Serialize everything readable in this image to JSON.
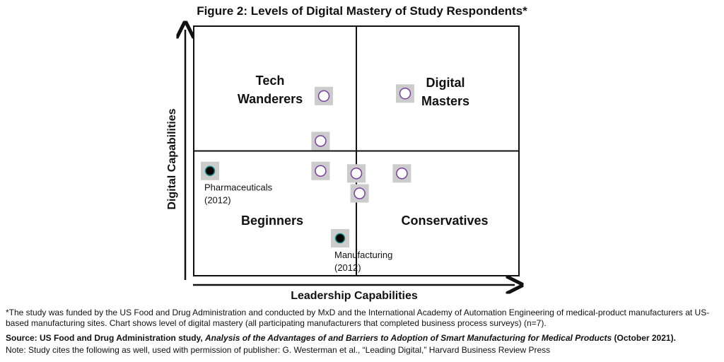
{
  "chart_data": {
    "type": "scatter",
    "title": "Figure 2: Levels of Digital Mastery of Study Respondents*",
    "xlabel": "Leadership Capabilities",
    "ylabel": "Digital Capabilities",
    "xlim": [
      0,
      10
    ],
    "ylim": [
      0,
      10
    ],
    "quadrant_divider": {
      "x": 5,
      "y": 5
    },
    "quadrants": [
      {
        "label_lines": [
          "Tech",
          "Wanderers"
        ],
        "position": "top-left"
      },
      {
        "label_lines": [
          "Digital",
          "Masters"
        ],
        "position": "top-right"
      },
      {
        "label_lines": [
          "Beginners"
        ],
        "position": "bottom-left"
      },
      {
        "label_lines": [
          "Conservatives"
        ],
        "position": "bottom-right"
      }
    ],
    "series": [
      {
        "marker": "open-circle",
        "marker_color": "#7a3fa0",
        "points": [
          {
            "x": 4.0,
            "y": 7.2
          },
          {
            "x": 6.5,
            "y": 7.3
          },
          {
            "x": 3.9,
            "y": 4.2
          },
          {
            "x": 3.9,
            "y": 5.4
          },
          {
            "x": 5.0,
            "y": 4.1
          },
          {
            "x": 6.4,
            "y": 4.1
          },
          {
            "x": 5.1,
            "y": 3.3
          }
        ]
      },
      {
        "marker": "filled-circle",
        "marker_color": "#000000",
        "points": [
          {
            "x": 0.5,
            "y": 4.2,
            "label_lines": [
              "Pharmaceuticals",
              "(2012)"
            ]
          },
          {
            "x": 4.5,
            "y": 1.5,
            "label_lines": [
              "Manufacturing",
              "(2012)"
            ]
          }
        ]
      }
    ],
    "grid": false,
    "legend": "none"
  },
  "notes": {
    "footnote": "*The study was funded by the US Food and Drug Administration and conducted by MxD and the International Academy of Automation Engineering of medical-product manufacturers at US-based manufacturing sites. Chart shows level of digital mastery (all participating manufacturers that completed business process surveys) (n=7).",
    "source_prefix": "Source: US Food and Drug Administration study, ",
    "source_title": "Analysis of the Advantages of and Barriers to Adoption of Smart Manufacturing for Medical Products",
    "source_suffix": " (October 2021).",
    "permission": "Note: Study cites the following as well, used with permission of publisher: G. Westerman et al., “Leading Digital,” Harvard Business Review Press"
  },
  "colors": {
    "marker_box": "#cccccc",
    "open_marker_fill": "#ffffff",
    "filled_marker_outline": "#1a8f8f",
    "frame": "#111111"
  }
}
